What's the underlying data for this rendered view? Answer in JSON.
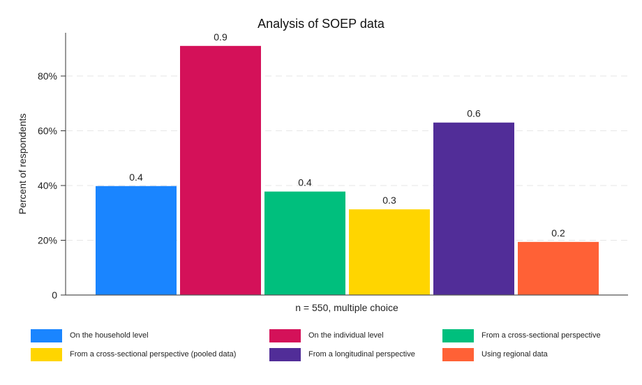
{
  "chart_data": {
    "type": "bar",
    "title": "Analysis of SOEP data",
    "xlabel": "n = 550, multiple choice",
    "ylabel": "Percent of respondents",
    "ylim": [
      0,
      0.96
    ],
    "yticks": [
      0,
      0.2,
      0.4,
      0.6,
      0.8
    ],
    "ytick_labels": [
      "0",
      "20%",
      "40%",
      "60%",
      "80%"
    ],
    "grid": "horizontal-dashed",
    "legend_position": "bottom",
    "categories": [
      "On the household level",
      "On the individual level",
      "From a cross-sectional perspective",
      "From a cross-sectional perspective (pooled data)",
      "From a longitudinal perspective",
      "Using regional data"
    ],
    "values": [
      0.398,
      0.91,
      0.378,
      0.313,
      0.63,
      0.194
    ],
    "data_labels": [
      "0.4",
      "0.9",
      "0.4",
      "0.3",
      "0.6",
      "0.2"
    ],
    "colors": [
      "#1a85ff",
      "#d41159",
      "#00bf7d",
      "#ffd500",
      "#512d98",
      "#ff6136"
    ]
  },
  "legend": {
    "items": [
      {
        "label": "On the household level",
        "color": "#1a85ff"
      },
      {
        "label": "On the individual level",
        "color": "#d41159"
      },
      {
        "label": "From a cross-sectional perspective",
        "color": "#00bf7d"
      },
      {
        "label": "From a cross-sectional perspective (pooled data)",
        "color": "#ffd500"
      },
      {
        "label": "From a longitudinal perspective",
        "color": "#512d98"
      },
      {
        "label": "Using regional data",
        "color": "#ff6136"
      }
    ]
  }
}
